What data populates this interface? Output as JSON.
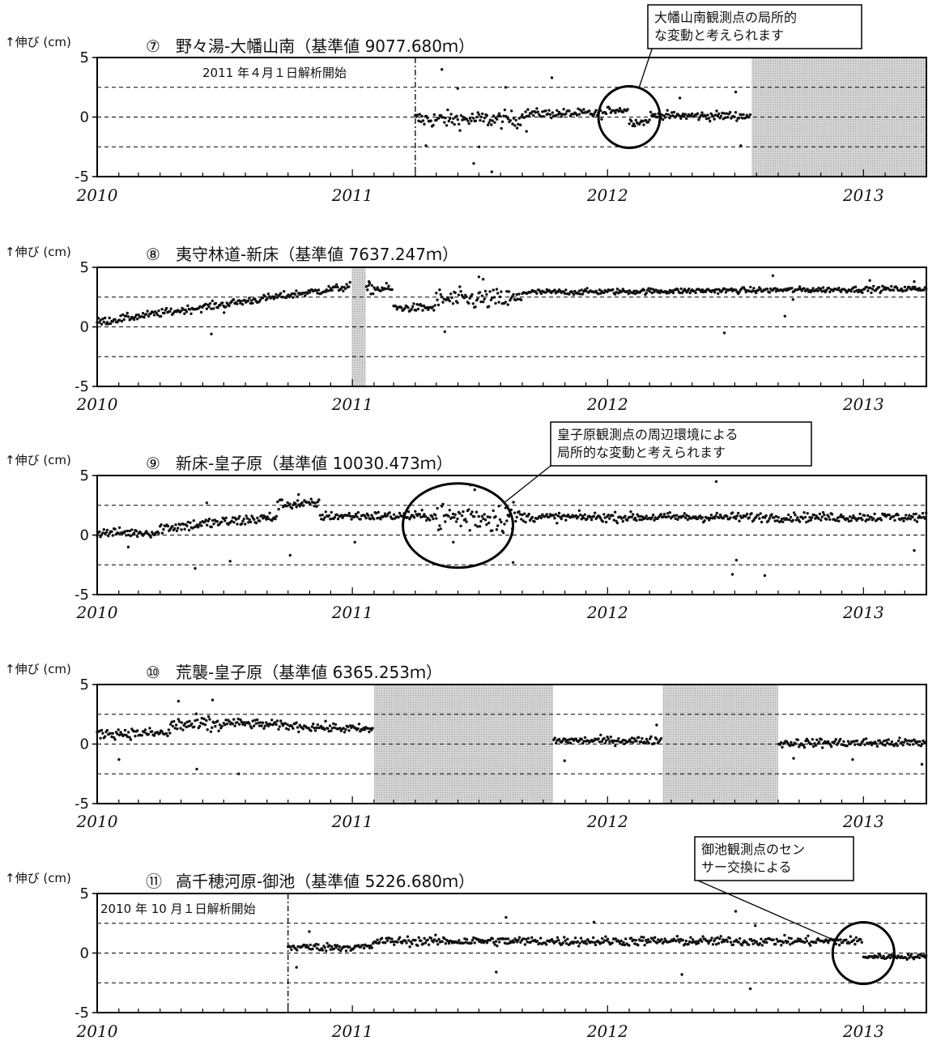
{
  "unit_label": "↑伸び (cm)",
  "style": {
    "point_color": "#111111",
    "gap_color": "#d4d4d4",
    "line_color": "#000000"
  },
  "chart_data": [
    {
      "type": "scatter",
      "marker": "⑦",
      "title": "野々湯-大幡山南（基準値 9077.680ｍ）",
      "ylabel": "↑伸び (cm)",
      "ylim": [
        -5,
        5
      ],
      "yticks": [
        5,
        0,
        -5
      ],
      "xlim": [
        "2010-01-01",
        "2013-04-01"
      ],
      "xticks": [
        "2010",
        "2011",
        "2012",
        "2013"
      ],
      "reference_lines": [
        2.5,
        0,
        -2.5
      ],
      "grid": false,
      "gaps": [
        [
          "2012-07-25",
          "2013-04-01"
        ]
      ],
      "markers": [
        {
          "date": "2011-04-01",
          "label": "2011 年４月１日解析開始"
        }
      ],
      "annotation": {
        "lines": [
          "大幡山南観測点の局所的",
          "な変動と考えられます"
        ],
        "target": [
          "2012-02-01",
          0
        ]
      },
      "segments": [
        {
          "start": "2011-04-01",
          "end": "2011-08-31",
          "mean": -0.2,
          "noise": 0.65,
          "outliers": [
            [
              0.25,
              4.0
            ],
            [
              0.55,
              -3.9
            ],
            [
              0.72,
              -4.6
            ],
            [
              0.4,
              2.4
            ],
            [
              0.6,
              -2.5
            ],
            [
              0.1,
              -2.4
            ],
            [
              0.85,
              2.5
            ]
          ]
        },
        {
          "start": "2011-09-01",
          "end": "2011-12-31",
          "mean": 0.3,
          "noise": 0.35,
          "outliers": [
            [
              0.35,
              3.3
            ],
            [
              0.05,
              -1.2
            ]
          ]
        },
        {
          "start": "2012-01-01",
          "end": "2012-01-31",
          "mean": 0.6,
          "noise": 0.25
        },
        {
          "start": "2012-02-01",
          "end": "2012-02-29",
          "mean": -0.4,
          "noise": 0.3
        },
        {
          "start": "2012-03-01",
          "end": "2012-07-24",
          "mean": 0.1,
          "noise": 0.35,
          "outliers": [
            [
              0.3,
              1.6
            ],
            [
              0.85,
              2.1
            ],
            [
              0.9,
              -2.4
            ]
          ]
        }
      ]
    },
    {
      "type": "scatter",
      "marker": "⑧",
      "title": "夷守林道-新床（基準値 7637.247ｍ）",
      "ylabel": "↑伸び (cm)",
      "ylim": [
        -5,
        5
      ],
      "yticks": [
        5,
        0,
        -5
      ],
      "xlim": [
        "2010-01-01",
        "2013-04-01"
      ],
      "xticks": [
        "2010",
        "2011",
        "2012",
        "2013"
      ],
      "reference_lines": [
        2.5,
        0,
        -2.5
      ],
      "grid": false,
      "gaps": [
        [
          "2010-12-31",
          "2011-01-20"
        ]
      ],
      "segments": [
        {
          "start": "2010-01-01",
          "end": "2010-12-30",
          "mean": [
            0.4,
            3.4
          ],
          "noise": 0.3,
          "outliers": [
            [
              0.45,
              -0.6
            ],
            [
              0.5,
              1.2
            ]
          ]
        },
        {
          "start": "2011-01-21",
          "end": "2011-02-28",
          "mean": 3.2,
          "noise": 0.4,
          "outliers": [
            [
              0.1,
              3.8
            ]
          ]
        },
        {
          "start": "2011-03-01",
          "end": "2011-04-30",
          "mean": 1.6,
          "noise": 0.3
        },
        {
          "start": "2011-05-01",
          "end": "2011-08-31",
          "mean": 2.3,
          "noise": 0.8,
          "outliers": [
            [
              0.1,
              -0.4
            ],
            [
              0.5,
              4.2
            ],
            [
              0.55,
              4.0
            ]
          ]
        },
        {
          "start": "2011-09-01",
          "end": "2013-04-01",
          "mean": [
            2.9,
            3.2
          ],
          "noise": 0.22,
          "outliers": [
            [
              0.62,
              4.3
            ],
            [
              0.67,
              2.3
            ],
            [
              0.5,
              -0.5
            ],
            [
              0.65,
              0.9
            ],
            [
              0.86,
              3.9
            ],
            [
              0.97,
              3.8
            ]
          ]
        }
      ]
    },
    {
      "type": "scatter",
      "marker": "⑨",
      "title": "新床-皇子原（基準値 10030.473ｍ）",
      "ylabel": "↑伸び (cm)",
      "ylim": [
        -5,
        5
      ],
      "yticks": [
        5,
        0,
        -5
      ],
      "xlim": [
        "2010-01-01",
        "2013-04-01"
      ],
      "xticks": [
        "2010",
        "2011",
        "2012",
        "2013"
      ],
      "reference_lines": [
        2.5,
        0,
        -2.5
      ],
      "grid": false,
      "gaps": [],
      "annotation": {
        "lines": [
          "皇子原観測点の周辺環境による",
          "局所的な変動と考えられます"
        ],
        "target": [
          "2011-06-01",
          0.8
        ]
      },
      "segments": [
        {
          "start": "2010-01-01",
          "end": "2010-03-31",
          "mean": 0.2,
          "noise": 0.35,
          "outliers": [
            [
              0.5,
              -1.0
            ]
          ]
        },
        {
          "start": "2010-04-01",
          "end": "2010-09-15",
          "mean": [
            0.6,
            1.5
          ],
          "noise": 0.45,
          "outliers": [
            [
              0.3,
              -2.8
            ],
            [
              0.6,
              -2.2
            ],
            [
              0.4,
              2.7
            ]
          ]
        },
        {
          "start": "2010-09-16",
          "end": "2010-11-15",
          "mean": 2.6,
          "noise": 0.4,
          "outliers": [
            [
              0.3,
              -1.7
            ],
            [
              0.5,
              3.4
            ]
          ]
        },
        {
          "start": "2010-11-16",
          "end": "2011-04-30",
          "mean": 1.6,
          "noise": 0.35,
          "outliers": [
            [
              0.3,
              -0.6
            ]
          ]
        },
        {
          "start": "2011-05-01",
          "end": "2011-08-31",
          "mean": 1.5,
          "noise": 1.2,
          "outliers": [
            [
              0.4,
              4.2
            ],
            [
              0.45,
              3.8
            ],
            [
              0.2,
              -0.6
            ],
            [
              0.9,
              -2.3
            ]
          ]
        },
        {
          "start": "2011-09-01",
          "end": "2013-04-01",
          "mean": 1.5,
          "noise": 0.35,
          "outliers": [
            [
              0.48,
              4.5
            ],
            [
              0.52,
              -3.3
            ],
            [
              0.53,
              -2.1
            ],
            [
              0.6,
              -3.4
            ],
            [
              0.97,
              -1.3
            ]
          ]
        }
      ]
    },
    {
      "type": "scatter",
      "marker": "⑩",
      "title": "荒襲-皇子原（基準値 6365.253ｍ）",
      "ylabel": "↑伸び (cm)",
      "ylim": [
        -5,
        5
      ],
      "yticks": [
        5,
        0,
        -5
      ],
      "xlim": [
        "2010-01-01",
        "2013-04-01"
      ],
      "xticks": [
        "2010",
        "2011",
        "2012",
        "2013"
      ],
      "reference_lines": [
        2.5,
        0,
        -2.5
      ],
      "grid": false,
      "gaps": [
        [
          "2011-02-01",
          "2011-10-15"
        ],
        [
          "2012-03-20",
          "2012-09-01"
        ]
      ],
      "segments": [
        {
          "start": "2010-01-01",
          "end": "2010-04-15",
          "mean": 0.9,
          "noise": 0.4,
          "outliers": [
            [
              0.3,
              -1.3
            ]
          ]
        },
        {
          "start": "2010-04-16",
          "end": "2010-06-30",
          "mean": 1.6,
          "noise": 0.7,
          "outliers": [
            [
              0.15,
              3.6
            ],
            [
              0.5,
              -2.1
            ],
            [
              0.8,
              3.7
            ]
          ]
        },
        {
          "start": "2010-07-01",
          "end": "2011-01-31",
          "mean": [
            1.8,
            1.2
          ],
          "noise": 0.35,
          "outliers": [
            [
              0.1,
              -2.5
            ]
          ]
        },
        {
          "start": "2011-10-16",
          "end": "2012-03-19",
          "mean": 0.3,
          "noise": 0.3,
          "outliers": [
            [
              0.1,
              -1.4
            ],
            [
              0.95,
              1.6
            ]
          ]
        },
        {
          "start": "2012-09-02",
          "end": "2013-04-01",
          "mean": 0.1,
          "noise": 0.35,
          "outliers": [
            [
              0.1,
              -1.2
            ],
            [
              0.5,
              -1.3
            ],
            [
              0.97,
              -1.7
            ]
          ]
        }
      ]
    },
    {
      "type": "scatter",
      "marker": "⑪",
      "title": "高千穂河原-御池（基準値 5226.680ｍ）",
      "ylabel": "↑伸び (cm)",
      "ylim": [
        -5,
        5
      ],
      "yticks": [
        5,
        0,
        -5
      ],
      "xlim": [
        "2010-01-01",
        "2013-04-01"
      ],
      "xticks": [
        "2010",
        "2011",
        "2012",
        "2013"
      ],
      "reference_lines": [
        2.5,
        0,
        -2.5
      ],
      "grid": false,
      "gaps": [],
      "markers": [
        {
          "date": "2010-10-01",
          "label": "2010 年 10 月１日解析開始"
        }
      ],
      "annotation": {
        "lines": [
          "御池観測点のセン",
          "サー交換による"
        ],
        "target": [
          "2013-01-01",
          0
        ]
      },
      "segments": [
        {
          "start": "2010-10-01",
          "end": "2011-01-31",
          "mean": 0.5,
          "noise": 0.3,
          "outliers": [
            [
              0.1,
              -1.2
            ],
            [
              0.25,
              1.8
            ]
          ]
        },
        {
          "start": "2011-02-01",
          "end": "2012-12-31",
          "mean": 1.0,
          "noise": 0.35,
          "outliers": [
            [
              0.27,
              3.0
            ],
            [
              0.25,
              -1.6
            ],
            [
              0.45,
              2.6
            ],
            [
              0.63,
              -1.8
            ],
            [
              0.74,
              3.5
            ],
            [
              0.77,
              -3.0
            ],
            [
              0.78,
              2.3
            ]
          ]
        },
        {
          "start": "2013-01-01",
          "end": "2013-04-01",
          "mean": -0.3,
          "noise": 0.2
        }
      ]
    }
  ]
}
